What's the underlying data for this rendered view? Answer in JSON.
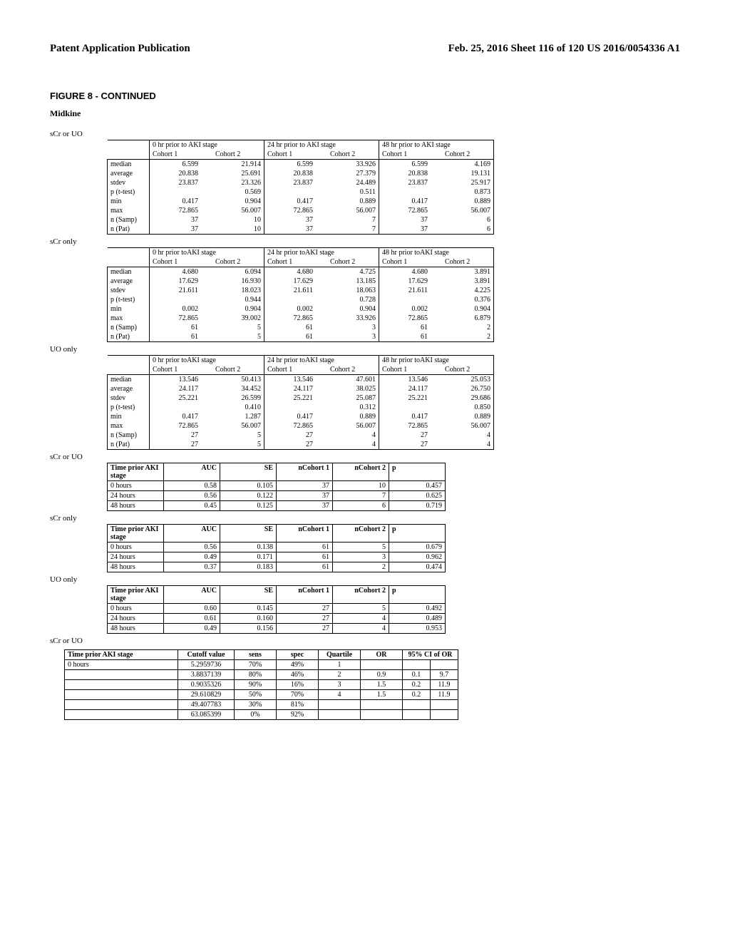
{
  "header": {
    "left": "Patent Application Publication",
    "right": "Feb. 25, 2016  Sheet 116 of 120   US 2016/0054336 A1"
  },
  "fig_title": "FIGURE 8 - CONTINUED",
  "subtitle": "Midkine",
  "stats_tables": [
    {
      "label": "sCr or UO",
      "prior_text": [
        "0 hr prior to AKI stage",
        "24 hr prior to AKI stage",
        "48 hr prior to AKI stage"
      ],
      "cohorts": [
        "Cohort 1",
        "Cohort 2",
        "Cohort 1",
        "Cohort 2",
        "Cohort 1",
        "Cohort 2"
      ],
      "rows": [
        {
          "l": "median",
          "v": [
            "6.599",
            "21.914",
            "6.599",
            "33.926",
            "6.599",
            "4.169"
          ]
        },
        {
          "l": "average",
          "v": [
            "20.838",
            "25.691",
            "20.838",
            "27.379",
            "20.838",
            "19.131"
          ]
        },
        {
          "l": "stdev",
          "v": [
            "23.837",
            "23.326",
            "23.837",
            "24.489",
            "23.837",
            "25.917"
          ]
        },
        {
          "l": "p (t-test)",
          "v": [
            "",
            "0.569",
            "",
            "0.511",
            "",
            "0.873"
          ]
        },
        {
          "l": "min",
          "v": [
            "0.417",
            "0.904",
            "0.417",
            "0.889",
            "0.417",
            "0.889"
          ]
        },
        {
          "l": "max",
          "v": [
            "72.865",
            "56.007",
            "72.865",
            "56.007",
            "72.865",
            "56.007"
          ]
        },
        {
          "l": "n (Samp)",
          "v": [
            "37",
            "10",
            "37",
            "7",
            "37",
            "6"
          ]
        },
        {
          "l": "n (Pat)",
          "v": [
            "37",
            "10",
            "37",
            "7",
            "37",
            "6"
          ]
        }
      ]
    },
    {
      "label": "sCr only",
      "prior_text": [
        "0 hr prior toAKI stage",
        "24 hr prior toAKI stage",
        "48 hr prior toAKI stage"
      ],
      "cohorts": [
        "Cohort 1",
        "Cohort 2",
        "Cohort 1",
        "Cohort 2",
        "Cohort 1",
        "Cohort 2"
      ],
      "rows": [
        {
          "l": "median",
          "v": [
            "4.680",
            "6.094",
            "4.680",
            "4.725",
            "4.680",
            "3.891"
          ]
        },
        {
          "l": "average",
          "v": [
            "17.629",
            "16.930",
            "17.629",
            "13.185",
            "17.629",
            "3.891"
          ]
        },
        {
          "l": "stdev",
          "v": [
            "21.611",
            "18.023",
            "21.611",
            "18.063",
            "21.611",
            "4.225"
          ]
        },
        {
          "l": "p (t-test)",
          "v": [
            "",
            "0.944",
            "",
            "0.728",
            "",
            "0.376"
          ]
        },
        {
          "l": "min",
          "v": [
            "0.002",
            "0.904",
            "0.002",
            "0.904",
            "0.002",
            "0.904"
          ]
        },
        {
          "l": "max",
          "v": [
            "72.865",
            "39.002",
            "72.865",
            "33.926",
            "72.865",
            "6.879"
          ]
        },
        {
          "l": "n (Samp)",
          "v": [
            "61",
            "5",
            "61",
            "3",
            "61",
            "2"
          ]
        },
        {
          "l": "n (Pat)",
          "v": [
            "61",
            "5",
            "61",
            "3",
            "61",
            "2"
          ]
        }
      ]
    },
    {
      "label": "UO only",
      "prior_text": [
        "0 hr prior toAKI stage",
        "24 hr prior toAKI stage",
        "48 hr prior toAKI stage"
      ],
      "cohorts": [
        "Cohort 1",
        "Cohort 2",
        "Cohort 1",
        "Cohort 2",
        "Cohort 1",
        "Cohort 2"
      ],
      "rows": [
        {
          "l": "median",
          "v": [
            "13.546",
            "50.413",
            "13.546",
            "47.601",
            "13.546",
            "25.053"
          ]
        },
        {
          "l": "average",
          "v": [
            "24.117",
            "34.452",
            "24.117",
            "38.025",
            "24.117",
            "26.750"
          ]
        },
        {
          "l": "stdev",
          "v": [
            "25.221",
            "26.599",
            "25.221",
            "25.087",
            "25.221",
            "29.686"
          ]
        },
        {
          "l": "p (t-test)",
          "v": [
            "",
            "0.410",
            "",
            "0.312",
            "",
            "0.850"
          ]
        },
        {
          "l": "min",
          "v": [
            "0.417",
            "1.287",
            "0.417",
            "0.889",
            "0.417",
            "0.889"
          ]
        },
        {
          "l": "max",
          "v": [
            "72.865",
            "56.007",
            "72.865",
            "56.007",
            "72.865",
            "56.007"
          ]
        },
        {
          "l": "n (Samp)",
          "v": [
            "27",
            "5",
            "27",
            "4",
            "27",
            "4"
          ]
        },
        {
          "l": "n (Pat)",
          "v": [
            "27",
            "5",
            "27",
            "4",
            "27",
            "4"
          ]
        }
      ]
    }
  ],
  "auc_tables": [
    {
      "label": "sCr or UO",
      "headers": [
        "Time prior AKI stage",
        "AUC",
        "SE",
        "nCohort 1",
        "nCohort 2",
        "p"
      ],
      "rows": [
        [
          "0 hours",
          "0.58",
          "0.105",
          "37",
          "10",
          "0.457"
        ],
        [
          "24 hours",
          "0.56",
          "0.122",
          "37",
          "7",
          "0.625"
        ],
        [
          "48 hours",
          "0.45",
          "0.125",
          "37",
          "6",
          "0.719"
        ]
      ]
    },
    {
      "label": "sCr only",
      "headers": [
        "Time prior AKI stage",
        "AUC",
        "SE",
        "nCohort 1",
        "nCohort 2",
        "p"
      ],
      "rows": [
        [
          "0 hours",
          "0.56",
          "0.138",
          "61",
          "5",
          "0.679"
        ],
        [
          "24 hours",
          "0.49",
          "0.171",
          "61",
          "3",
          "0.962"
        ],
        [
          "48 hours",
          "0.37",
          "0.183",
          "61",
          "2",
          "0.474"
        ]
      ]
    },
    {
      "label": "UO only",
      "headers": [
        "Time prior AKI stage",
        "AUC",
        "SE",
        "nCohort 1",
        "nCohort 2",
        "p"
      ],
      "rows": [
        [
          "0 hours",
          "0.60",
          "0.145",
          "27",
          "5",
          "0.492"
        ],
        [
          "24 hours",
          "0.61",
          "0.160",
          "27",
          "4",
          "0.489"
        ],
        [
          "48 hours",
          "0.49",
          "0.156",
          "27",
          "4",
          "0.953"
        ]
      ]
    }
  ],
  "cutoff": {
    "label": "sCr or UO",
    "headers": [
      "Time prior AKI stage",
      "Cutoff value",
      "sens",
      "spec",
      "Quartile",
      "OR",
      "95% CI of OR"
    ],
    "rows": [
      [
        "0 hours",
        "5.2959736",
        "70%",
        "49%",
        "1",
        "",
        "",
        ""
      ],
      [
        "",
        "3.8837139",
        "80%",
        "46%",
        "2",
        "0.9",
        "0.1",
        "9.7"
      ],
      [
        "",
        "0.9035326",
        "90%",
        "16%",
        "3",
        "1.5",
        "0.2",
        "11.9"
      ],
      [
        "",
        "29.610829",
        "50%",
        "70%",
        "4",
        "1.5",
        "0.2",
        "11.9"
      ],
      [
        "",
        "49.407783",
        "30%",
        "81%",
        "",
        "",
        "",
        ""
      ],
      [
        "",
        "63.085399",
        "0%",
        "92%",
        "",
        "",
        "",
        ""
      ]
    ]
  }
}
